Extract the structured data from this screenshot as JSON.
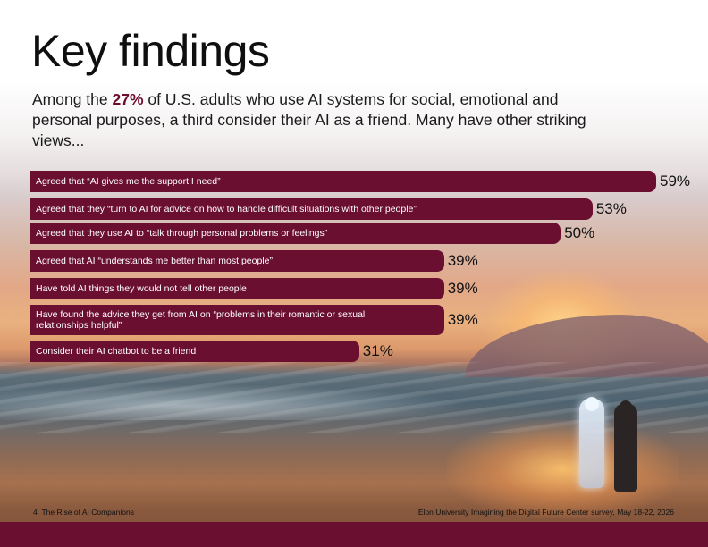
{
  "header": {
    "title": "Key findings",
    "subtitle_before": "Among the ",
    "subtitle_highlight": "27%",
    "subtitle_after": " of U.S. adults who use AI systems for social, emotional and personal purposes, a third consider their AI as a friend. Many have other striking views..."
  },
  "colors": {
    "bar": "#6b0f30",
    "highlight": "#6e0b2c"
  },
  "chart_data": {
    "type": "bar",
    "orientation": "horizontal",
    "value_suffix": "%",
    "xlim": [
      0,
      59
    ],
    "categories": [
      "Agreed that “AI gives me the support I need”",
      "Agreed that they “turn to AI for advice on how to handle difficult situations with other people”",
      "Agreed that they use AI to “talk through personal problems or feelings”",
      "Agreed that AI “understands me better than most people”",
      "Have told AI things they would not tell other people",
      "Have found the advice they get from AI on “problems in their romantic or sexual relationships helpful”",
      "Consider their AI chatbot to be a friend"
    ],
    "values": [
      59,
      53,
      50,
      39,
      39,
      39,
      31
    ],
    "value_labels": [
      "59%",
      "53%",
      "50%",
      "39%",
      "39%",
      "39%",
      "31%"
    ]
  },
  "footer": {
    "page_number": "4",
    "report_title": "The Rise of AI Companions",
    "source": "Elon University Imagining the Digital Future Center survey, May 18-22, 2026"
  }
}
